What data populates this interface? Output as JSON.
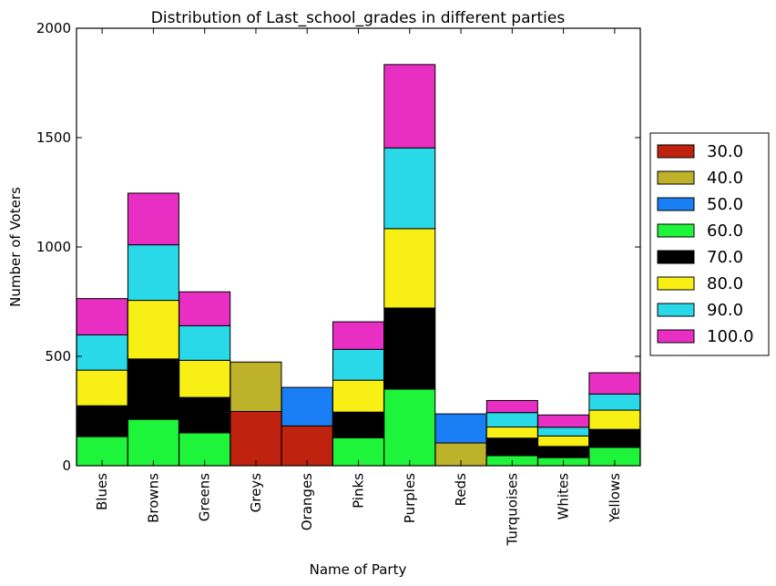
{
  "chart_data": {
    "type": "bar",
    "stacked": true,
    "title": "Distribution of Last_school_grades in different parties",
    "xlabel": "Name of Party",
    "ylabel": "Number of Voters",
    "ylim": [
      0,
      2000
    ],
    "yticks": [
      "0",
      "500",
      "1000",
      "1500",
      "2000"
    ],
    "grid": false,
    "legend_position": "right",
    "categories": [
      "Blues",
      "Browns",
      "Greens",
      "Greys",
      "Oranges",
      "Pinks",
      "Purples",
      "Reds",
      "Turquoises",
      "Whites",
      "Yellows"
    ],
    "series": [
      {
        "name": "30.0",
        "color": "#bf230f",
        "values": [
          0,
          0,
          0,
          248,
          182,
          0,
          0,
          0,
          0,
          0,
          0
        ]
      },
      {
        "name": "40.0",
        "color": "#bfb22b",
        "values": [
          0,
          0,
          0,
          226,
          0,
          0,
          0,
          104,
          0,
          0,
          0
        ]
      },
      {
        "name": "50.0",
        "color": "#1a7ff5",
        "values": [
          0,
          0,
          0,
          0,
          176,
          0,
          0,
          133,
          0,
          0,
          0
        ]
      },
      {
        "name": "60.0",
        "color": "#1ef53a",
        "values": [
          133,
          212,
          150,
          0,
          0,
          128,
          350,
          0,
          46,
          37,
          84
        ]
      },
      {
        "name": "70.0",
        "color": "#000000",
        "values": [
          141,
          276,
          162,
          0,
          0,
          117,
          371,
          0,
          80,
          51,
          82
        ]
      },
      {
        "name": "80.0",
        "color": "#f8f015",
        "values": [
          163,
          268,
          170,
          0,
          0,
          146,
          363,
          0,
          51,
          48,
          88
        ]
      },
      {
        "name": "90.0",
        "color": "#2ad9e8",
        "values": [
          161,
          254,
          158,
          0,
          0,
          141,
          369,
          0,
          66,
          40,
          74
        ]
      },
      {
        "name": "100.0",
        "color": "#e92ec4",
        "values": [
          166,
          236,
          155,
          0,
          0,
          126,
          381,
          0,
          55,
          56,
          97
        ]
      }
    ]
  }
}
